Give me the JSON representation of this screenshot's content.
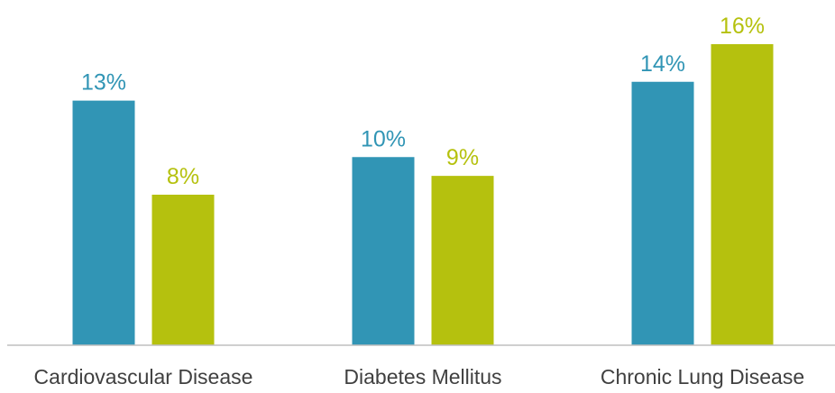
{
  "chart_data": {
    "type": "bar",
    "categories": [
      "Cardiovascular Disease",
      "Diabetes Mellitus",
      "Chronic Lung Disease"
    ],
    "series": [
      {
        "values": [
          13,
          10,
          14
        ],
        "labels": [
          "13%",
          "10%",
          "14%"
        ],
        "color": "#3195b5"
      },
      {
        "values": [
          8,
          9,
          16
        ],
        "labels": [
          "8%",
          "9%",
          "16%"
        ],
        "color": "#b5c10e"
      }
    ],
    "ylim": [
      0,
      16
    ],
    "unit": "%",
    "grid": false,
    "legend": "none",
    "axis_color": "#bfbfbf"
  }
}
